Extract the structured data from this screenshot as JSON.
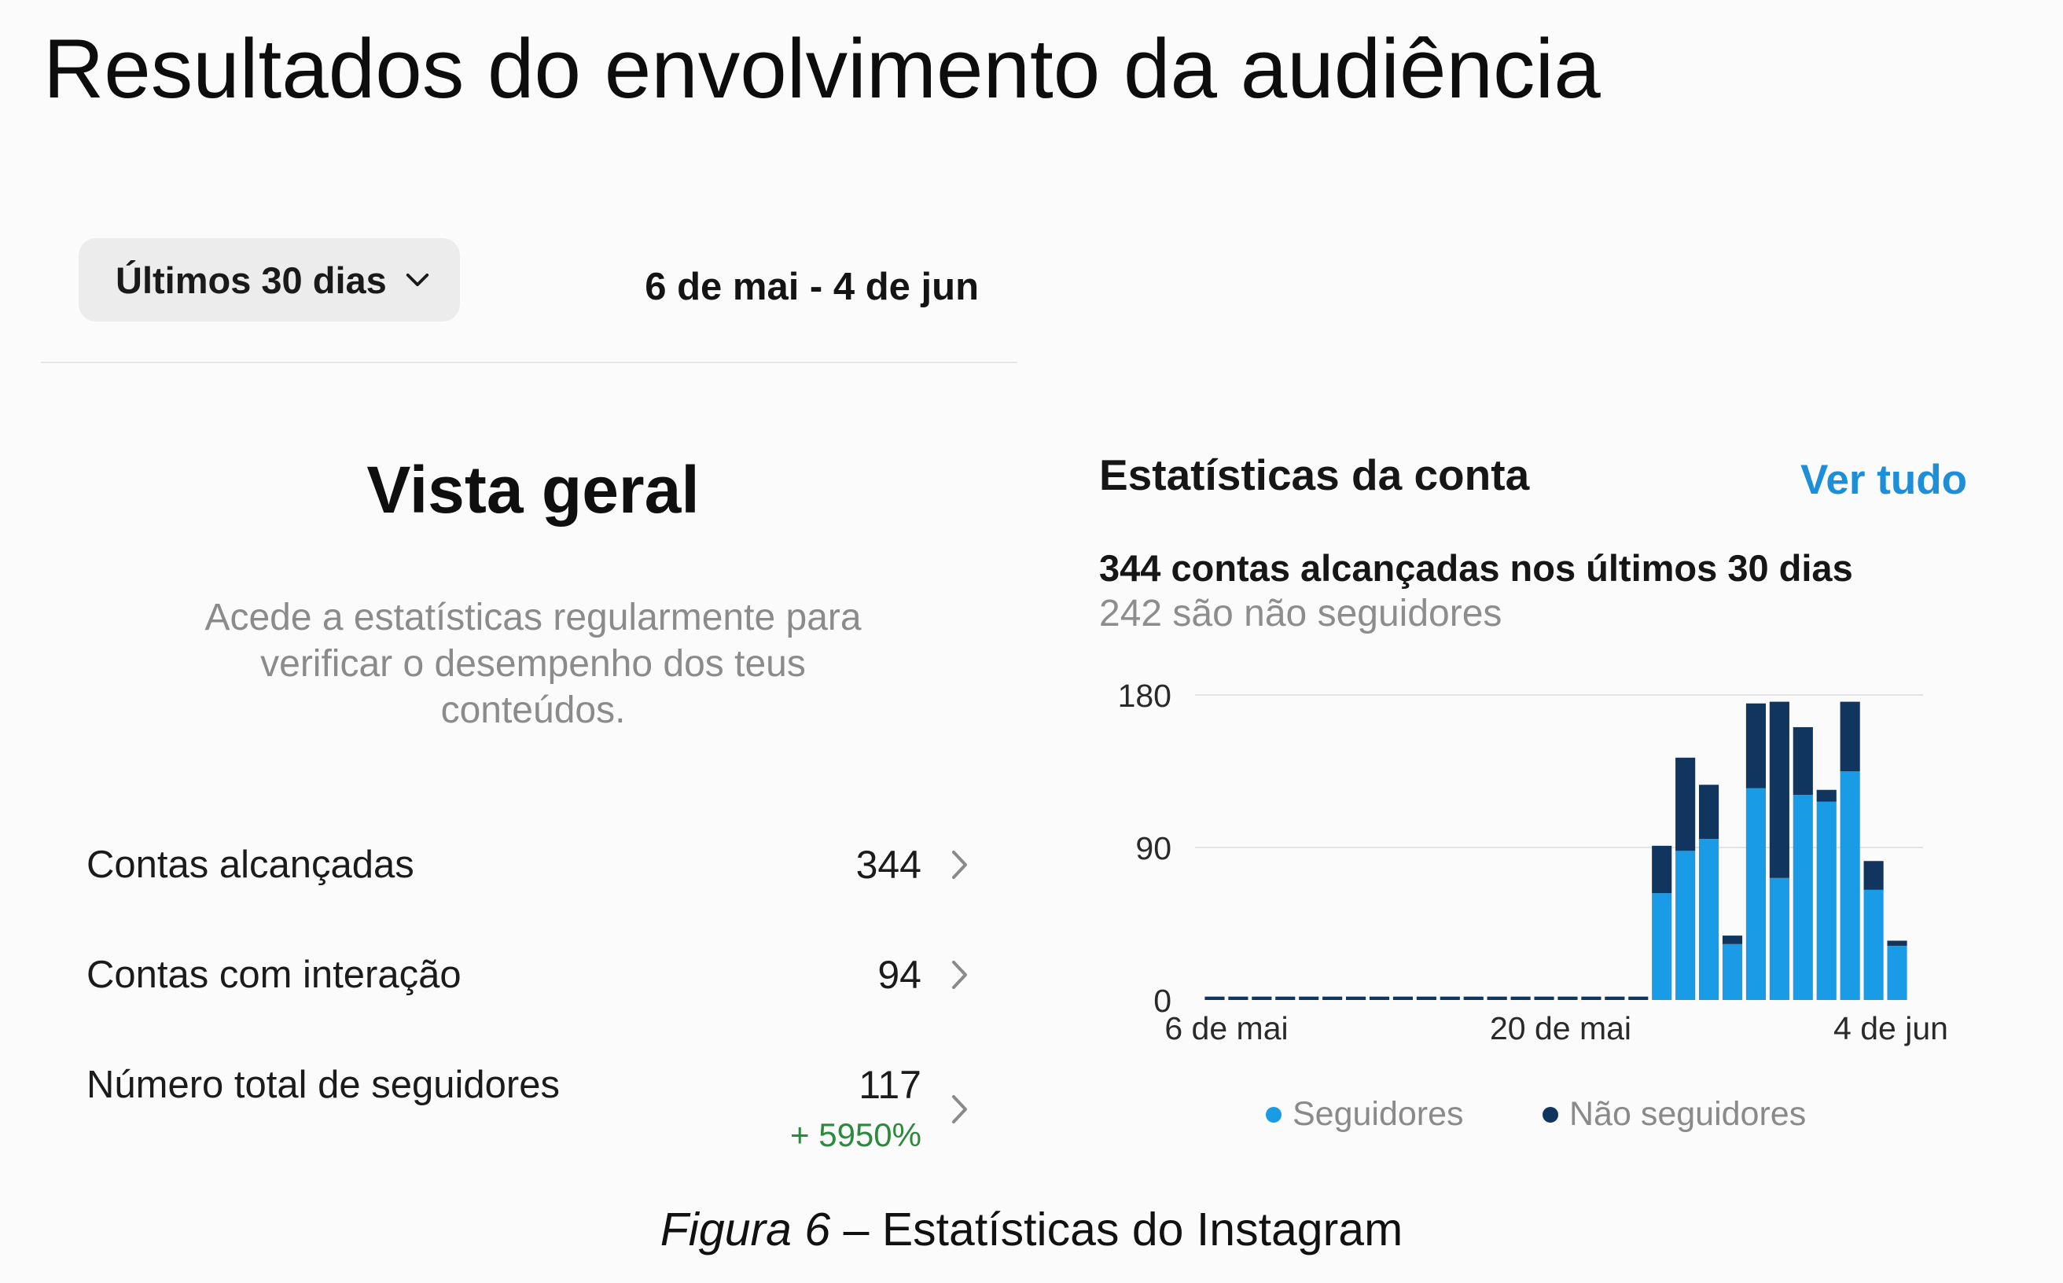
{
  "page_title": "Resultados do envolvimento da audiência",
  "filter": {
    "range_label": "Últimos 30 dias",
    "date_range": "6 de mai - 4 de jun"
  },
  "overview": {
    "title": "Vista geral",
    "description": "Acede a estatísticas regularmente para verificar o desempenho dos teus conteúdos.",
    "metrics": [
      {
        "label": "Contas alcançadas",
        "value": "344"
      },
      {
        "label": "Contas com interação",
        "value": "94"
      },
      {
        "label": "Número total de seguidores",
        "value": "117",
        "change": "+ 5950%"
      }
    ]
  },
  "account_stats": {
    "title": "Estatísticas da conta",
    "see_all": "Ver tudo",
    "reached_summary": "344 contas alcançadas nos últimos 30 dias",
    "nonfollowers_summary": "242 são não seguidores"
  },
  "chart_data": {
    "type": "bar",
    "stacked": true,
    "x_tick_labels": [
      "6 de mai",
      "20 de mai",
      "4 de jun"
    ],
    "y_tick_labels": [
      "0",
      "90",
      "180"
    ],
    "ylim": [
      0,
      180
    ],
    "grid": true,
    "series": [
      {
        "name": "Seguidores",
        "color": "#1a9be6",
        "values": [
          0,
          0,
          0,
          0,
          0,
          0,
          0,
          0,
          0,
          0,
          0,
          0,
          0,
          0,
          0,
          0,
          0,
          0,
          0,
          63,
          88,
          95,
          33,
          125,
          72,
          121,
          117,
          135,
          65,
          32
        ]
      },
      {
        "name": "Não seguidores",
        "color": "#10365f",
        "values": [
          2,
          2,
          2,
          2,
          2,
          2,
          2,
          2,
          2,
          2,
          2,
          2,
          2,
          2,
          2,
          2,
          2,
          2,
          2,
          28,
          55,
          32,
          5,
          50,
          104,
          40,
          7,
          41,
          17,
          3
        ]
      }
    ],
    "legend_position": "bottom"
  },
  "caption": {
    "figure": "Figura 6",
    "text": " – Estatísticas do Instagram"
  },
  "icons": {
    "dropdown": "chevron-down-icon",
    "row": "chevron-right-icon"
  }
}
